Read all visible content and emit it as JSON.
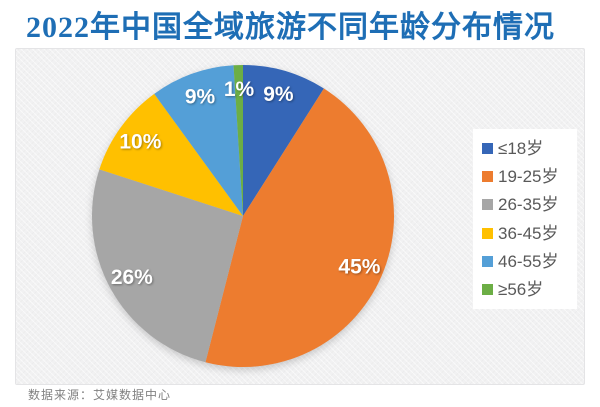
{
  "title": "2022年中国全域旅游不同年龄分布情况",
  "source": "数据来源：艾媒数据中心",
  "accent_colors": {
    "title_blue": "#1e6eb5",
    "panel_bg": "#f1f1f2",
    "legend_text": "#595959",
    "label_text": "#ffffff",
    "source_text": "#818181"
  },
  "chart_data": {
    "type": "pie",
    "title": "2022年中国全域旅游不同年龄分布情况",
    "categories": [
      "≤18岁",
      "19-25岁",
      "26-35岁",
      "36-45岁",
      "46-55岁",
      "≥56岁"
    ],
    "values": [
      9,
      45,
      26,
      10,
      9,
      1
    ],
    "labels": [
      "9%",
      "45%",
      "26%",
      "10%",
      "9%",
      "1%"
    ],
    "colors": [
      "#3566b7",
      "#ed7c2f",
      "#a6a6a6",
      "#ffc000",
      "#549fd7",
      "#6cae45"
    ],
    "legend_position": "right",
    "start_angle_deg": 0,
    "direction": "clockwise",
    "label_position": "inside",
    "grid": false
  }
}
